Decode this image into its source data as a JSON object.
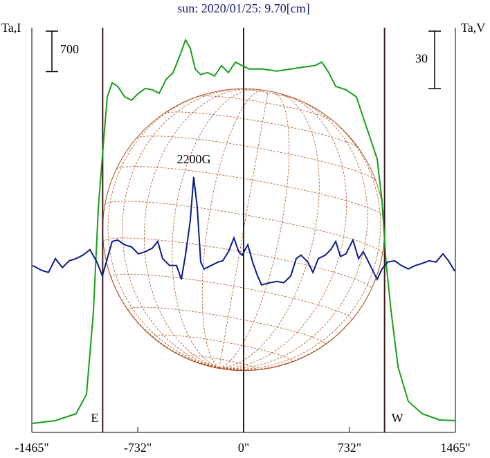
{
  "chart_data": {
    "type": "line",
    "title": "sun: 2020/01/25: 9.70[cm]",
    "ylabel": "Ta,I",
    "y2label": "Ta,V",
    "xlim": [
      -1465,
      1465
    ],
    "xticks": [
      {
        "value": -1465,
        "label": "-1465\""
      },
      {
        "value": -732,
        "label": "-732\""
      },
      {
        "value": 0,
        "label": "0\""
      },
      {
        "value": 732,
        "label": "732\""
      },
      {
        "value": 1465,
        "label": "1465\""
      }
    ],
    "ylim": [
      0,
      7000
    ],
    "y2lim": [
      -87,
      124
    ],
    "scale_bars": [
      {
        "value": 700,
        "label": "700",
        "axis": "y"
      },
      {
        "value": 30,
        "label": "30",
        "axis": "y2"
      }
    ],
    "vlines": [
      -975,
      0,
      975
    ],
    "limb_labels": [
      "E",
      "W"
    ],
    "annotation": {
      "text": "2200G",
      "x": -345,
      "y": 46.2
    },
    "series": [
      {
        "name": "Ta,I",
        "color": "#16a016",
        "axis": "y",
        "x": [
          -1460,
          -1302,
          -1159,
          -1087,
          -1039,
          -1005,
          -967,
          -943,
          -909,
          -871,
          -823,
          -775,
          -728,
          -680,
          -632,
          -584,
          -536,
          -488,
          -440,
          -402,
          -369,
          -335,
          -297,
          -249,
          -201,
          -153,
          -105,
          -57,
          -10,
          38,
          134,
          230,
          326,
          421,
          493,
          541,
          589,
          637,
          708,
          780,
          828,
          876,
          924,
          957,
          986,
          1020,
          1068,
          1139,
          1235,
          1355,
          1460
        ],
        "values": [
          156,
          203,
          323,
          658,
          2094,
          3890,
          5087,
          5805,
          6045,
          5985,
          5805,
          5745,
          5865,
          5949,
          5925,
          5865,
          6105,
          6224,
          6524,
          6787,
          6643,
          6284,
          6188,
          6224,
          6164,
          6344,
          6224,
          6404,
          6344,
          6284,
          6284,
          6248,
          6284,
          6320,
          6344,
          6404,
          6224,
          5985,
          5925,
          5805,
          5446,
          5087,
          4728,
          4010,
          2933,
          2094,
          1137,
          538,
          323,
          215,
          203
        ]
      },
      {
        "name": "Ta,V",
        "color": "#0a1a8a",
        "axis": "y2",
        "x": [
          -1460,
          -1398,
          -1350,
          -1302,
          -1254,
          -1206,
          -1159,
          -1111,
          -1063,
          -1015,
          -977,
          -943,
          -909,
          -871,
          -823,
          -775,
          -728,
          -680,
          -632,
          -594,
          -560,
          -512,
          -464,
          -431,
          -402,
          -369,
          -345,
          -321,
          -297,
          -273,
          -225,
          -177,
          -144,
          -105,
          -67,
          -34,
          -10,
          29,
          62,
          96,
          124,
          182,
          230,
          278,
          326,
          364,
          397,
          445,
          479,
          517,
          565,
          603,
          637,
          670,
          708,
          756,
          795,
          828,
          852,
          924,
          957,
          996,
          1044,
          1091,
          1139,
          1187,
          1235,
          1283,
          1331,
          1379,
          1417,
          1460
        ],
        "values": [
          0,
          -2.5,
          -3.6,
          3.6,
          -1.1,
          2.5,
          3.6,
          5.4,
          8.3,
          1.8,
          -5.4,
          3.6,
          12.6,
          13.3,
          10.8,
          9.7,
          6.1,
          7.2,
          9.0,
          12.6,
          3.6,
          0,
          0,
          -7.2,
          5.4,
          23.4,
          46.2,
          30.3,
          1.8,
          -1.8,
          0,
          1.8,
          2.5,
          7.2,
          14.4,
          7.2,
          5.4,
          10.8,
          1.8,
          -5.4,
          -10.1,
          -9.0,
          -8.3,
          -9.0,
          -5.4,
          3.6,
          5.4,
          1.8,
          -3.6,
          3.6,
          5.4,
          8.3,
          12.6,
          4.7,
          6.1,
          13.3,
          3.6,
          7.2,
          3.6,
          -7.2,
          -1.8,
          1.8,
          2.5,
          0,
          -1.8,
          0,
          1.1,
          2.5,
          1.8,
          6.1,
          2.5,
          -2.9
        ]
      }
    ]
  }
}
